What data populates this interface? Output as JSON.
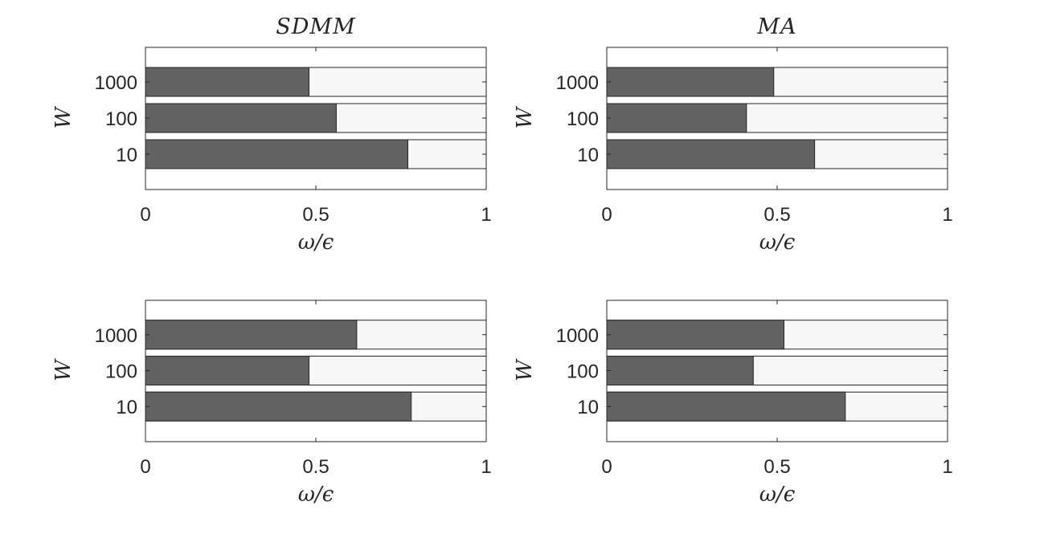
{
  "colors": {
    "filled": "#626262",
    "remainder": "#f7f7f7",
    "edge": "#262626",
    "axis": "#262626"
  },
  "chart_data": [
    {
      "type": "bar",
      "orientation": "horizontal",
      "stacked": true,
      "title": "SDMM",
      "xlabel": "ω/ϵ",
      "ylabel": "W",
      "xlim": [
        0,
        1
      ],
      "xticks": [
        "0",
        "0.5",
        "1"
      ],
      "categories": [
        "10",
        "100",
        "1000"
      ],
      "series": [
        {
          "values": [
            0.77,
            0.56,
            0.48
          ]
        }
      ]
    },
    {
      "type": "bar",
      "orientation": "horizontal",
      "stacked": true,
      "title": "MA",
      "xlabel": "ω/ϵ",
      "ylabel": "W",
      "xlim": [
        0,
        1
      ],
      "xticks": [
        "0",
        "0.5",
        "1"
      ],
      "categories": [
        "10",
        "100",
        "1000"
      ],
      "series": [
        {
          "values": [
            0.61,
            0.41,
            0.49
          ]
        }
      ]
    },
    {
      "type": "bar",
      "orientation": "horizontal",
      "stacked": true,
      "title": "",
      "xlabel": "ω/ϵ",
      "ylabel": "W",
      "xlim": [
        0,
        1
      ],
      "xticks": [
        "0",
        "0.5",
        "1"
      ],
      "categories": [
        "10",
        "100",
        "1000"
      ],
      "series": [
        {
          "values": [
            0.78,
            0.48,
            0.62
          ]
        }
      ]
    },
    {
      "type": "bar",
      "orientation": "horizontal",
      "stacked": true,
      "title": "",
      "xlabel": "ω/ϵ",
      "ylabel": "W",
      "xlim": [
        0,
        1
      ],
      "xticks": [
        "0",
        "0.5",
        "1"
      ],
      "categories": [
        "10",
        "100",
        "1000"
      ],
      "series": [
        {
          "values": [
            0.7,
            0.43,
            0.52
          ]
        }
      ]
    }
  ]
}
